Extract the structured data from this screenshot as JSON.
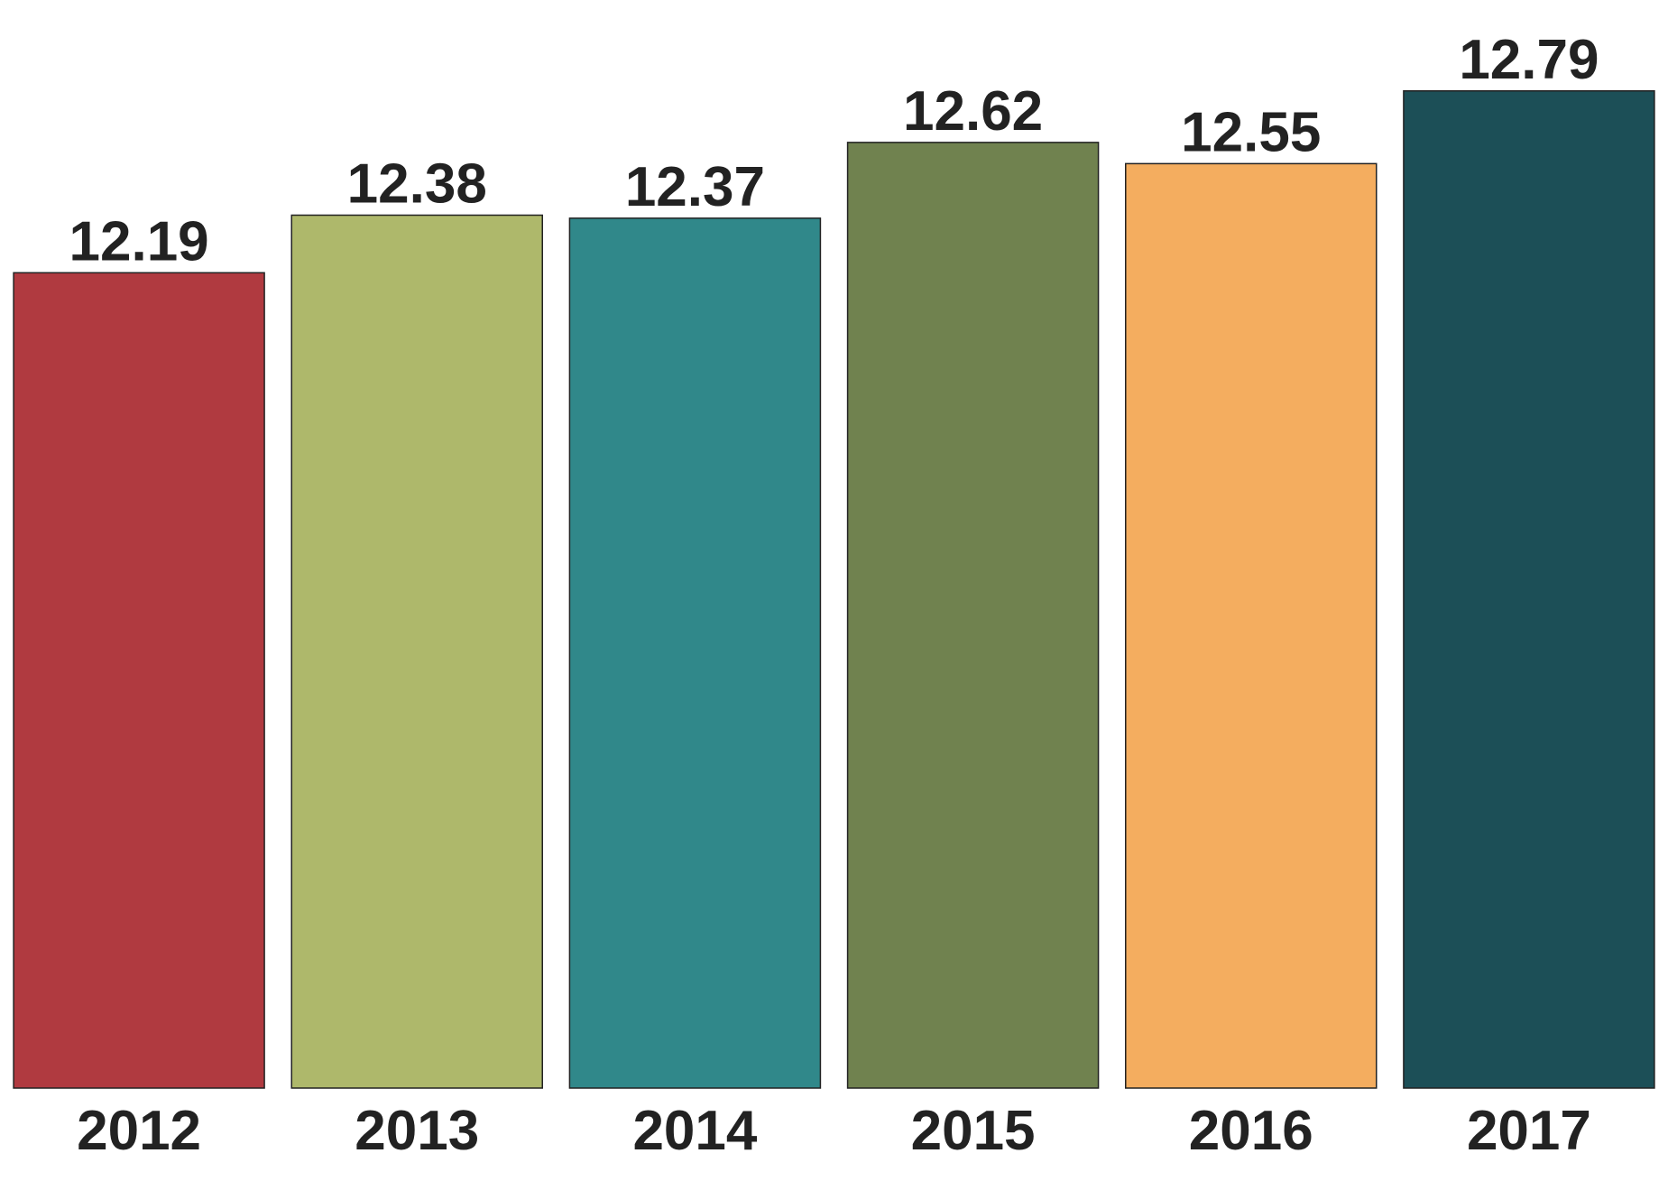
{
  "chart_data": {
    "type": "bar",
    "categories": [
      "2012",
      "2013",
      "2014",
      "2015",
      "2016",
      "2017"
    ],
    "values": [
      12.19,
      12.38,
      12.37,
      12.62,
      12.55,
      12.79
    ],
    "colors": [
      "#b03a40",
      "#aeb86b",
      "#30888a",
      "#70824f",
      "#f4ad5f",
      "#1c4f57"
    ],
    "ylim": [
      9.5,
      12.95
    ]
  }
}
